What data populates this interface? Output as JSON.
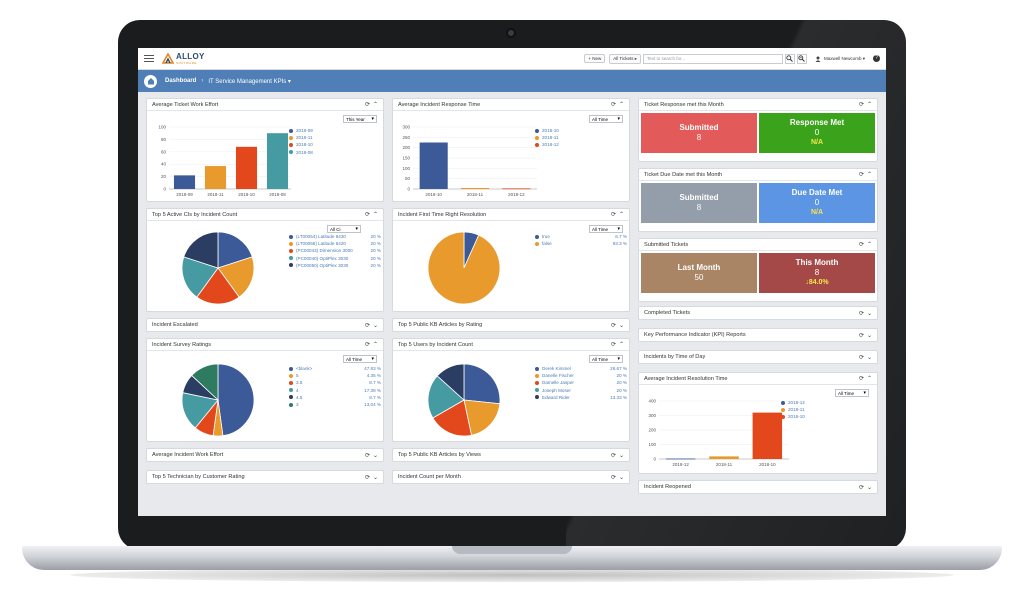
{
  "app": {
    "new_label": "+ New",
    "scope_label": "All Tickets ▸",
    "search_placeholder": "Text to search for...",
    "user_name": "Maxwell Newcomb ▾",
    "help": "?",
    "logo_text": "ALLOY",
    "logo_sub": "SOFTWARE"
  },
  "nav": {
    "dashboard": "Dashboard",
    "separator": "›",
    "view": "IT Service Management KPIs ▾"
  },
  "widgets": {
    "avg_ticket_effort": {
      "title": "Average Ticket Work Effort",
      "filter": "This Year",
      "chart_data": {
        "type": "bar",
        "categories": [
          "2018-09",
          "2018-11",
          "2018-10",
          "2018-08"
        ],
        "values": [
          22,
          37,
          68,
          90
        ],
        "colors": [
          "#3d5a98",
          "#e89a2c",
          "#e2481b",
          "#469ba3"
        ],
        "ylim": [
          0,
          100
        ],
        "yticks": [
          "0",
          "20",
          "40",
          "60",
          "80",
          "100"
        ]
      }
    },
    "avg_incident_response": {
      "title": "Average Incident Response Time",
      "filter": "All Time",
      "chart_data": {
        "type": "bar",
        "categories": [
          "2018-10",
          "2018-11",
          "2018-12"
        ],
        "values": [
          225,
          5,
          3
        ],
        "colors": [
          "#3d5a98",
          "#e89a2c",
          "#e2481b"
        ],
        "ylim": [
          0,
          300
        ],
        "yticks": [
          "0",
          "50",
          "100",
          "150",
          "200",
          "250",
          "300"
        ]
      }
    },
    "top5_cis": {
      "title": "Top 5 Active CIs by Incident Count",
      "filter": "All Ci",
      "chart_data": {
        "type": "pie",
        "labels": [
          "(LT00054) Latitude 6430",
          "(LT00068) Latitude 6420",
          "(PC00043) Dimension 3000",
          "(PC00040) OptiPlex 3030",
          "(PC00050) OptiPlex 3030"
        ],
        "values": [
          20,
          20,
          20,
          20,
          20
        ],
        "display": [
          "20 %",
          "20 %",
          "20 %",
          "20 %",
          "20 %"
        ],
        "colors": [
          "#3d5a98",
          "#e89a2c",
          "#e2481b",
          "#469ba3",
          "#2b3d63"
        ]
      }
    },
    "first_time_right": {
      "title": "Incident First Time Right Resolution",
      "filter": "All Time",
      "chart_data": {
        "type": "pie",
        "labels": [
          "true",
          "false"
        ],
        "values": [
          6.7,
          93.3
        ],
        "display": [
          "6.7 %",
          "93.3 %"
        ],
        "colors": [
          "#3d5a98",
          "#e89a2c"
        ]
      }
    },
    "incident_escalated": {
      "title": "Incident Escalated"
    },
    "kb_by_rating": {
      "title": "Top 5 Public KB Articles by Rating"
    },
    "survey_ratings": {
      "title": "Incident Survey Ratings",
      "filter": "All Time",
      "chart_data": {
        "type": "pie",
        "labels": [
          "<blank>",
          "5",
          "3.5",
          "4",
          "4.5",
          "3"
        ],
        "values": [
          47.83,
          4.35,
          8.7,
          17.39,
          8.7,
          13.04
        ],
        "display": [
          "47.83 %",
          "4.35 %",
          "8.7 %",
          "17.39 %",
          "8.7 %",
          "13.04 %"
        ],
        "colors": [
          "#3d5a98",
          "#e89a2c",
          "#e2481b",
          "#469ba3",
          "#2b3d63",
          "#2f7b62"
        ]
      }
    },
    "top5_users": {
      "title": "Top 5 Users by Incident Count",
      "filter": "All Time",
      "chart_data": {
        "type": "pie",
        "labels": [
          "Derek Kimmel",
          "Danelle Fischer",
          "Damelle Jasper",
          "Joseph Moser",
          "Edward Rider"
        ],
        "values": [
          26.67,
          20,
          20,
          20,
          13.33
        ],
        "display": [
          "26.67 %",
          "20 %",
          "20 %",
          "20 %",
          "13.33 %"
        ],
        "colors": [
          "#3d5a98",
          "#e89a2c",
          "#e2481b",
          "#469ba3",
          "#2b3d63"
        ]
      }
    },
    "avg_incident_effort": {
      "title": "Average Incident Work Effort"
    },
    "kb_by_views": {
      "title": "Top 5 Public KB Articles by Views"
    },
    "top5_technician": {
      "title": "Top 5 Technician by Customer Rating"
    },
    "incident_count_month": {
      "title": "Incident Count per Month"
    },
    "response_met": {
      "title": "Ticket Response met this Month",
      "left": {
        "label": "Submitted",
        "value": "8",
        "color": "#e25a5a"
      },
      "right": {
        "label": "Response Met",
        "value": "0",
        "sub": "N/A",
        "color": "#3aa31b"
      }
    },
    "due_date_met": {
      "title": "Ticket Due Date met this Month",
      "left": {
        "label": "Submitted",
        "value": "8",
        "color": "#949daa"
      },
      "right": {
        "label": "Due Date Met",
        "value": "0",
        "sub": "N/A",
        "color": "#5b95e3"
      }
    },
    "submitted_tickets": {
      "title": "Submitted Tickets",
      "left": {
        "label": "Last Month",
        "value": "50",
        "color": "#a98565"
      },
      "right": {
        "label": "This Month",
        "value": "8",
        "sub": "↓84.0%",
        "color": "#a54848"
      }
    },
    "completed_tickets": {
      "title": "Completed Tickets"
    },
    "kpi_reports": {
      "title": "Key Performance Indicator (KPI) Reports"
    },
    "incidents_time_of_day": {
      "title": "Incidents by Time of Day"
    },
    "avg_resolution_time": {
      "title": "Average Incident Resolution Time",
      "filter": "All Time",
      "chart_data": {
        "type": "bar",
        "categories": [
          "2018-12",
          "2018-11",
          "2018-10"
        ],
        "values": [
          3,
          18,
          320
        ],
        "colors": [
          "#3d5a98",
          "#e89a2c",
          "#e2481b"
        ],
        "ylim": [
          0,
          400
        ],
        "yticks": [
          "0",
          "100",
          "200",
          "300",
          "400"
        ]
      }
    },
    "incident_reopened": {
      "title": "Incident Reopened"
    }
  }
}
